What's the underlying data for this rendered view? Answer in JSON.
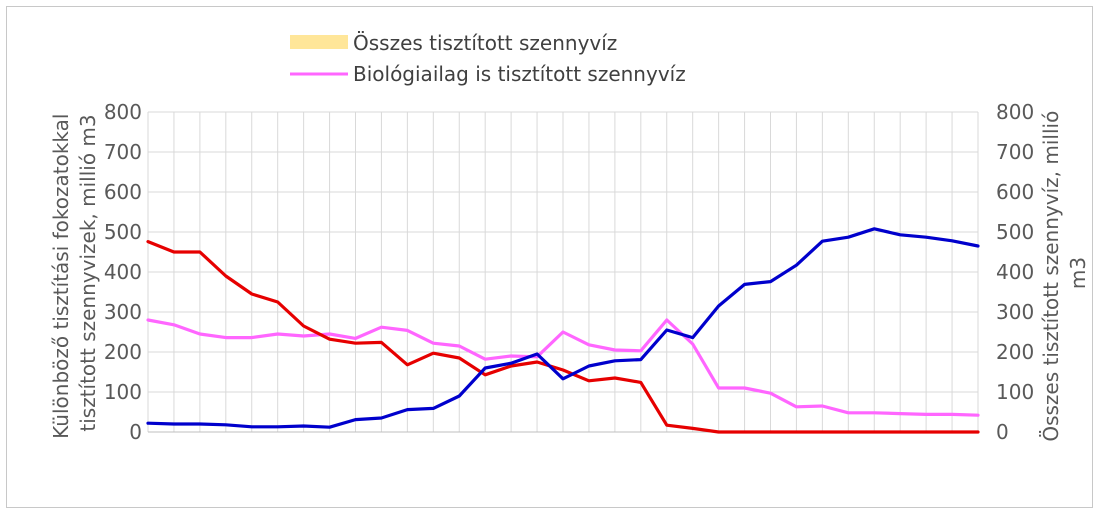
{
  "chart_data": {
    "type": "line",
    "legend": {
      "placement": "top",
      "entries": [
        {
          "key": "total",
          "label": "Összes tisztított szennyvíz",
          "color": "#ffe699",
          "marker": "area"
        },
        {
          "key": "bio",
          "label": "Biológiailag is tisztított szennyvíz",
          "color": "#ff66ff",
          "marker": "line"
        }
      ]
    },
    "y_left": {
      "label_lines": [
        "Különböző tisztítási fokozatokkal",
        "tisztított szennyvizek, millió m3"
      ],
      "ylim": [
        0,
        800
      ],
      "ticks": [
        "0",
        "100",
        "200",
        "300",
        "400",
        "500",
        "600",
        "700",
        "800"
      ]
    },
    "y_right": {
      "label_lines": [
        "Összes tisztított szennyvíz, millió",
        "m3"
      ],
      "ylim": [
        0,
        800
      ],
      "ticks": [
        "0",
        "100",
        "200",
        "300",
        "400",
        "500",
        "600",
        "700",
        "800"
      ]
    },
    "grid": true,
    "n_points": 33,
    "series": [
      {
        "key": "bio",
        "color": "#ff66ff",
        "values": [
          280,
          268,
          245,
          236,
          236,
          245,
          240,
          245,
          234,
          262,
          254,
          222,
          215,
          182,
          190,
          188,
          250,
          218,
          205,
          203,
          280,
          220,
          110,
          110,
          97,
          63,
          65,
          48,
          48,
          46,
          44,
          44,
          42
        ]
      },
      {
        "key": "red",
        "color": "#e60000",
        "values": [
          476,
          450,
          450,
          390,
          345,
          325,
          265,
          232,
          222,
          224,
          168,
          197,
          185,
          143,
          165,
          175,
          155,
          128,
          135,
          124,
          17,
          9,
          0,
          0,
          0,
          0,
          0,
          0,
          0,
          0,
          0,
          0,
          0
        ]
      },
      {
        "key": "blue",
        "color": "#0000cc",
        "values": [
          22,
          20,
          20,
          18,
          13,
          13,
          15,
          12,
          31,
          35,
          56,
          59,
          90,
          160,
          172,
          195,
          133,
          165,
          178,
          181,
          255,
          236,
          315,
          369,
          376,
          417,
          477,
          487,
          508,
          493,
          487,
          478,
          465
        ]
      }
    ]
  }
}
